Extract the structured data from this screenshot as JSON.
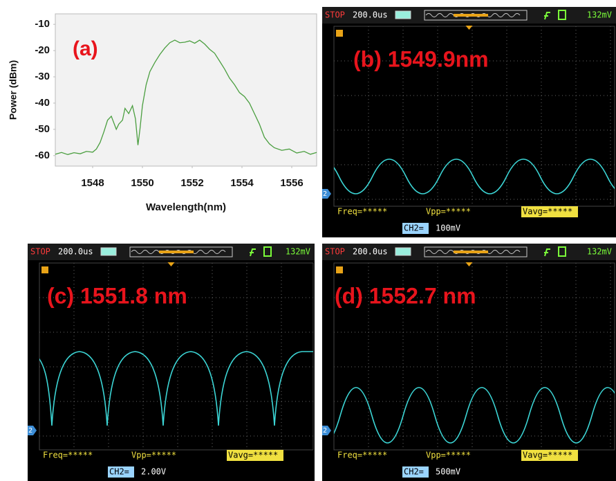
{
  "chart_data": {
    "type": "line",
    "annotation": "(a)",
    "xlabel": "Wavelength(nm)",
    "ylabel": "Power (dBm)",
    "x": [
      1546.5,
      1546.75,
      1547.0,
      1547.25,
      1547.5,
      1547.75,
      1548.0,
      1548.15,
      1548.3,
      1548.45,
      1548.6,
      1548.75,
      1548.85,
      1548.95,
      1549.05,
      1549.2,
      1549.3,
      1549.45,
      1549.6,
      1549.72,
      1549.82,
      1549.9,
      1550.0,
      1550.15,
      1550.3,
      1550.5,
      1550.7,
      1550.9,
      1551.1,
      1551.3,
      1551.5,
      1551.7,
      1551.9,
      1552.1,
      1552.3,
      1552.5,
      1552.7,
      1552.9,
      1553.1,
      1553.3,
      1553.5,
      1553.7,
      1553.9,
      1554.1,
      1554.3,
      1554.5,
      1554.7,
      1554.9,
      1555.1,
      1555.3,
      1555.6,
      1555.9,
      1556.2,
      1556.5,
      1556.75,
      1557.0
    ],
    "values": [
      -59.5,
      -58.8,
      -59.6,
      -58.9,
      -59.3,
      -58.4,
      -58.7,
      -57.5,
      -55,
      -51,
      -46.5,
      -45,
      -47.5,
      -50,
      -48,
      -46.5,
      -42,
      -44,
      -41,
      -46,
      -56,
      -50,
      -41,
      -33,
      -28,
      -24.5,
      -21.5,
      -19,
      -17,
      -16,
      -17,
      -16.8,
      -16.3,
      -17.2,
      -16,
      -17.5,
      -19.5,
      -21,
      -24,
      -27,
      -30.5,
      -33,
      -36,
      -37.5,
      -40,
      -44,
      -48,
      -53,
      -55.5,
      -57,
      -58,
      -57.5,
      -59,
      -58.4,
      -59.5,
      -58.8
    ],
    "color": "#4a9e3f",
    "xlim": [
      1546.5,
      1557
    ],
    "ylim": [
      -64,
      -6
    ],
    "xticks": [
      1548,
      1550,
      1552,
      1554,
      1556
    ],
    "yticks": [
      -60,
      -50,
      -40,
      -30,
      -20,
      -10
    ]
  },
  "scopes": [
    {
      "label": "(b) 1549.9nm",
      "status": "STOP",
      "timebase": "200.0us",
      "trigger_level": "132mV",
      "freq": "Freq=*****",
      "vpp": "Vpp=*****",
      "vavg": "Vavg=*****",
      "channel": "CH2=",
      "scale": "100mV",
      "marker": "2"
    },
    {
      "label": "(c) 1551.8 nm",
      "status": "STOP",
      "timebase": "200.0us",
      "trigger_level": "132mV",
      "freq": "Freq=*****",
      "vpp": "Vpp=*****",
      "vavg": "Vavg=*****",
      "channel": "CH2=",
      "scale": "2.00V",
      "marker": "2"
    },
    {
      "label": "(d) 1552.7 nm",
      "status": "STOP",
      "timebase": "200.0us",
      "trigger_level": "132mV",
      "freq": "Freq=*****",
      "vpp": "Vpp=*****",
      "vavg": "Vavg=*****",
      "channel": "CH2=",
      "scale": "500mV",
      "marker": "2"
    }
  ]
}
